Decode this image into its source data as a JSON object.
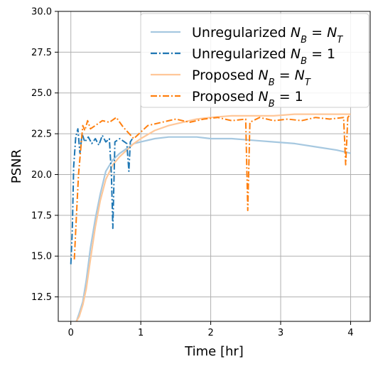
{
  "chart_data": {
    "type": "line",
    "title": "",
    "xlabel": "Time [hr]",
    "ylabel": "PSNR",
    "xlim": [
      -0.18,
      4.28
    ],
    "ylim": [
      11.0,
      30.0
    ],
    "xticks": [
      0,
      1,
      2,
      3,
      4
    ],
    "xtick_labels": [
      "0",
      "1",
      "2",
      "3",
      "4"
    ],
    "yticks": [
      12.5,
      15.0,
      17.5,
      20.0,
      22.5,
      25.0,
      27.5,
      30.0
    ],
    "ytick_labels": [
      "12.5",
      "15.0",
      "17.5",
      "20.0",
      "22.5",
      "25.0",
      "27.5",
      "30.0"
    ],
    "grid": true,
    "legend_position": "top-right",
    "series": [
      {
        "name": "Unregularized N_B = N_T",
        "legend_main": "Unregularized ",
        "legend_math": "N",
        "legend_sub1": "B",
        "legend_eq": " = ",
        "legend_math2": "N",
        "legend_sub2": "T",
        "color": "#a6c8e0",
        "style": "solid",
        "x": [
          0.08,
          0.12,
          0.17,
          0.22,
          0.28,
          0.35,
          0.42,
          0.5,
          0.6,
          0.7,
          0.8,
          0.9,
          1.0,
          1.2,
          1.4,
          1.6,
          1.8,
          2.0,
          2.3,
          2.6,
          2.9,
          3.2,
          3.5,
          3.8,
          4.0
        ],
        "y": [
          11.0,
          11.5,
          12.2,
          13.5,
          15.5,
          17.3,
          18.8,
          20.2,
          20.9,
          21.3,
          21.6,
          21.9,
          22.0,
          22.2,
          22.3,
          22.3,
          22.3,
          22.2,
          22.2,
          22.1,
          22.0,
          21.9,
          21.7,
          21.5,
          21.3
        ]
      },
      {
        "name": "Unregularized N_B = 1",
        "legend_main": "Unregularized ",
        "legend_math": "N",
        "legend_sub1": "B",
        "legend_eq": " = 1",
        "legend_math2": "",
        "legend_sub2": "",
        "color": "#1f77b4",
        "style": "dashdot",
        "x": [
          0.0,
          0.02,
          0.04,
          0.07,
          0.1,
          0.13,
          0.16,
          0.2,
          0.25,
          0.3,
          0.35,
          0.4,
          0.45,
          0.5,
          0.55,
          0.58,
          0.6,
          0.63,
          0.7,
          0.8,
          0.83,
          0.85,
          0.88
        ],
        "y": [
          14.5,
          16.5,
          20.5,
          22.3,
          22.8,
          21.3,
          22.5,
          22.0,
          22.3,
          21.9,
          22.2,
          21.8,
          22.4,
          22.0,
          22.2,
          20.0,
          16.7,
          22.0,
          22.2,
          21.9,
          20.2,
          22.0,
          22.2
        ]
      },
      {
        "name": "Proposed N_B = N_T",
        "legend_main": "Proposed ",
        "legend_math": "N",
        "legend_sub1": "B",
        "legend_eq": " = ",
        "legend_math2": "N",
        "legend_sub2": "T",
        "color": "#ffc799",
        "style": "solid",
        "x": [
          0.08,
          0.12,
          0.17,
          0.22,
          0.28,
          0.35,
          0.42,
          0.5,
          0.6,
          0.7,
          0.8,
          0.9,
          1.0,
          1.2,
          1.4,
          1.6,
          1.8,
          2.0,
          2.3,
          2.6,
          2.9,
          3.2,
          3.5,
          3.8,
          4.0
        ],
        "y": [
          11.0,
          11.3,
          12.0,
          13.0,
          14.8,
          16.8,
          18.4,
          19.7,
          20.6,
          21.1,
          21.5,
          21.9,
          22.2,
          22.7,
          23.0,
          23.2,
          23.4,
          23.5,
          23.6,
          23.6,
          23.6,
          23.7,
          23.7,
          23.7,
          23.7
        ]
      },
      {
        "name": "Proposed N_B = 1",
        "legend_main": "Proposed ",
        "legend_math": "N",
        "legend_sub1": "B",
        "legend_eq": " = 1",
        "legend_math2": "",
        "legend_sub2": "",
        "color": "#ff7f0e",
        "style": "dashdot",
        "x": [
          0.05,
          0.08,
          0.11,
          0.14,
          0.17,
          0.2,
          0.24,
          0.28,
          0.35,
          0.45,
          0.55,
          0.65,
          0.75,
          0.9,
          1.1,
          1.3,
          1.5,
          1.7,
          1.9,
          2.1,
          2.3,
          2.5,
          2.53,
          2.56,
          2.7,
          2.9,
          3.1,
          3.3,
          3.5,
          3.7,
          3.9,
          3.93,
          3.96,
          4.0
        ],
        "y": [
          14.8,
          17.5,
          20.0,
          21.5,
          23.0,
          22.7,
          23.3,
          22.8,
          23.0,
          23.3,
          23.2,
          23.5,
          22.9,
          22.2,
          23.0,
          23.2,
          23.4,
          23.2,
          23.4,
          23.5,
          23.3,
          23.4,
          17.8,
          23.2,
          23.5,
          23.3,
          23.4,
          23.3,
          23.5,
          23.4,
          23.5,
          20.6,
          23.5,
          23.7
        ]
      }
    ]
  }
}
